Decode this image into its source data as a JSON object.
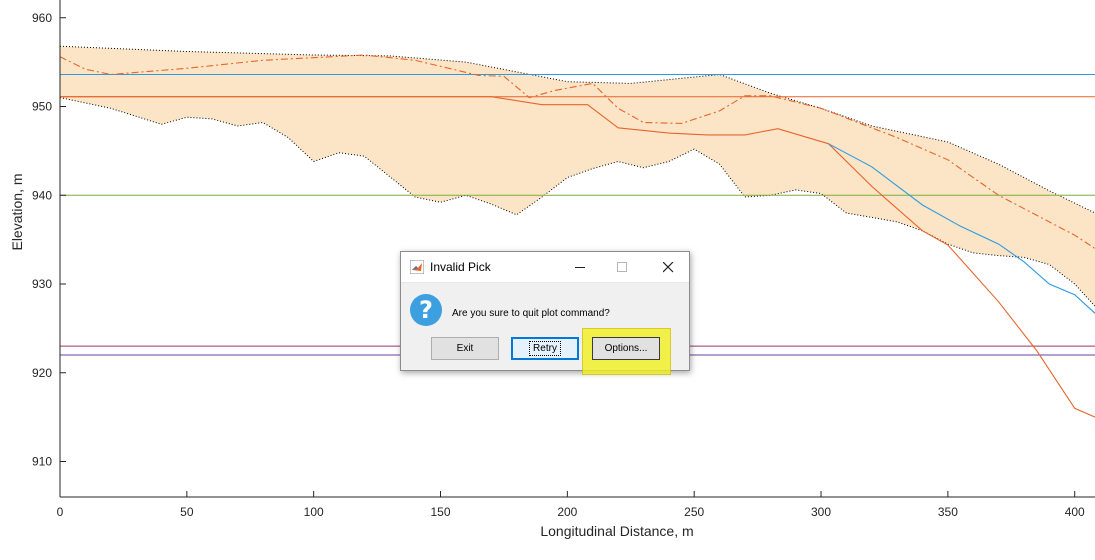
{
  "chart_data": {
    "type": "line",
    "xlabel": "Longitudinal Distance, m",
    "ylabel": "Elevation, m",
    "xlim": [
      0,
      408
    ],
    "ylim": [
      906,
      962
    ],
    "xticks": [
      0,
      50,
      100,
      150,
      200,
      250,
      300,
      350,
      400
    ],
    "yticks": [
      910,
      920,
      930,
      940,
      950,
      960
    ],
    "band": {
      "color": "#fbe5c6",
      "upper_x": [
        0,
        50,
        100,
        130,
        160,
        200,
        225,
        260,
        280,
        300,
        320,
        350,
        370,
        390,
        408
      ],
      "upper_y": [
        956.8,
        956.2,
        955.8,
        955.7,
        955.0,
        952.8,
        952.6,
        953.6,
        951.5,
        949.8,
        947.8,
        946.0,
        943.5,
        940.5,
        938.0
      ],
      "lower_x": [
        0,
        20,
        40,
        50,
        60,
        70,
        80,
        90,
        100,
        110,
        120,
        140,
        150,
        160,
        170,
        180,
        190,
        200,
        210,
        220,
        230,
        240,
        250,
        260,
        270,
        280,
        290,
        300,
        310,
        320,
        330,
        340,
        350,
        360,
        370,
        380,
        390,
        400,
        408
      ],
      "lower_y": [
        951.0,
        949.8,
        948.0,
        948.8,
        948.6,
        947.8,
        948.2,
        946.5,
        943.8,
        944.8,
        944.4,
        939.8,
        939.2,
        940.0,
        939.0,
        937.8,
        939.8,
        942.0,
        943.0,
        943.8,
        943.1,
        943.8,
        945.2,
        943.5,
        939.8,
        940.0,
        940.6,
        940.2,
        938.0,
        937.5,
        937.0,
        936.0,
        934.5,
        933.5,
        933.2,
        933.0,
        932.2,
        930.0,
        927.5
      ]
    },
    "hlines": [
      {
        "y": 953.6,
        "color": "#2e9be0"
      },
      {
        "y": 951.1,
        "color": "#e8642c"
      },
      {
        "y": 940.0,
        "color": "#7fad3a"
      },
      {
        "y": 923.0,
        "color": "#a0306e"
      },
      {
        "y": 922.0,
        "color": "#6f3fa0"
      }
    ],
    "series": [
      {
        "style": "dashdot",
        "color": "#e8642c",
        "x": [
          0,
          10,
          20,
          50,
          80,
          120,
          140,
          165,
          175,
          185,
          195,
          210,
          220,
          230,
          245,
          260,
          270,
          280,
          300,
          330,
          350,
          370,
          390,
          400,
          408
        ],
        "y": [
          955.6,
          954.2,
          953.6,
          954.3,
          955.2,
          955.8,
          955.2,
          953.5,
          953.4,
          951.0,
          951.8,
          952.6,
          949.8,
          948.2,
          948.1,
          949.5,
          951.2,
          951.2,
          949.8,
          946.5,
          944.0,
          940.0,
          937.0,
          935.5,
          934.0
        ]
      },
      {
        "style": "solid",
        "color": "#e8642c",
        "x": [
          0,
          170,
          190,
          208,
          220,
          240,
          255,
          270,
          283,
          303,
          320,
          340,
          350,
          370,
          385,
          400,
          408
        ],
        "y": [
          951.1,
          951.1,
          950.2,
          950.2,
          947.6,
          947.0,
          946.8,
          946.8,
          947.5,
          945.8,
          941.0,
          936.0,
          934.4,
          928.0,
          922.5,
          916.0,
          915.0
        ]
      },
      {
        "style": "solid",
        "color": "#2e9be0",
        "x": [
          303,
          320,
          340,
          355,
          370,
          380,
          390,
          400,
          408
        ],
        "y": [
          945.8,
          943.2,
          938.9,
          936.5,
          934.5,
          932.5,
          930.0,
          928.8,
          926.7
        ]
      }
    ]
  },
  "dialog": {
    "title": "Invalid Pick",
    "message": "Are you sure to quit plot command?",
    "buttons": {
      "exit": "Exit",
      "retry": "Retry",
      "options": "Options..."
    },
    "highlight_color": "#f0f020"
  }
}
